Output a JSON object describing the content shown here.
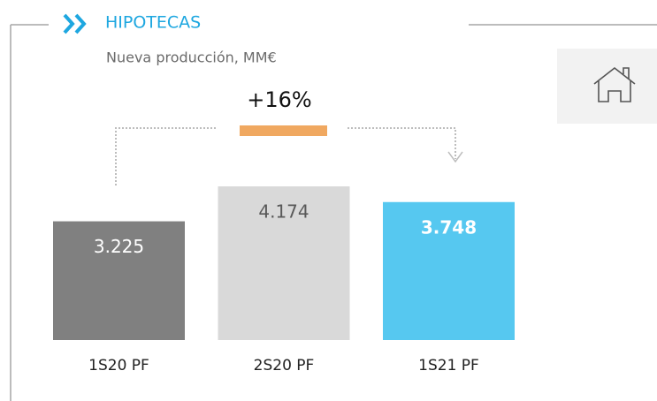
{
  "chart_data": {
    "type": "bar",
    "title": "HIPOTECAS",
    "subtitle": "Nueva producción, MM€",
    "annotation": "+16%",
    "categories": [
      "1S20 PF",
      "2S20 PF",
      "1S21 PF"
    ],
    "values": [
      3225,
      4174,
      3748
    ],
    "value_labels": [
      "3.225",
      "4.174",
      "3.748"
    ],
    "colors": [
      "#808080",
      "#d9d9d9",
      "#56c8f0"
    ]
  }
}
